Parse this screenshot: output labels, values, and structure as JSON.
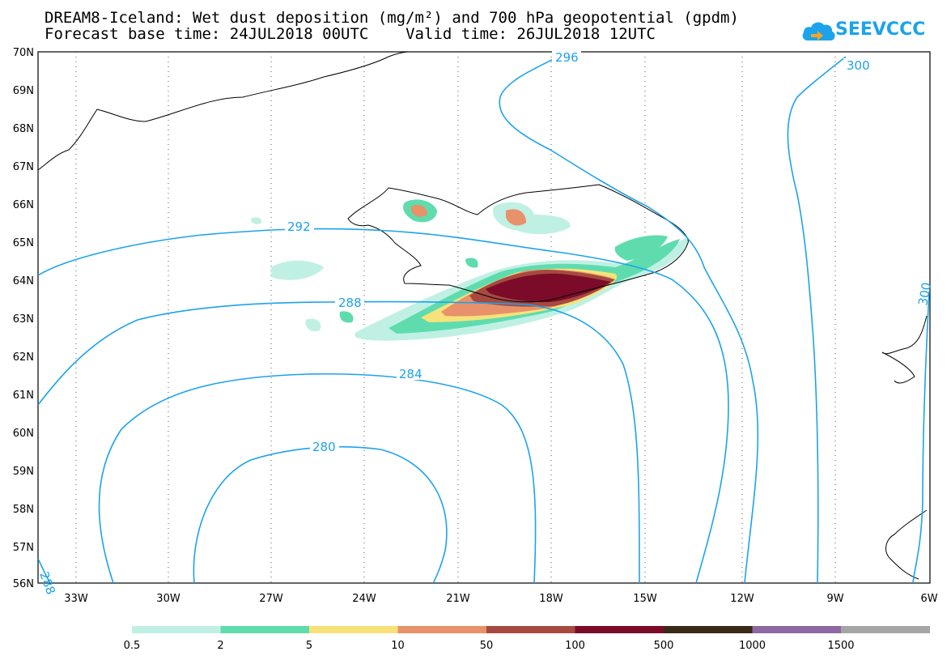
{
  "header": {
    "title_line1": "DREAM8-Iceland: Wet dust deposition (mg/m²) and 700 hPa geopotential (gpdm)",
    "title_line2": "Forecast base time: 24JUL2018 00UTC    Valid time: 26JUL2018 12UTC",
    "logo_text": "SEEVCCC"
  },
  "map": {
    "lat_labels": [
      "70N",
      "69N",
      "68N",
      "67N",
      "66N",
      "65N",
      "64N",
      "63N",
      "62N",
      "61N",
      "60N",
      "59N",
      "58N",
      "57N",
      "56N"
    ],
    "lon_labels": [
      "33W",
      "30W",
      "27W",
      "24W",
      "21W",
      "18W",
      "15W",
      "12W",
      "9W",
      "6W"
    ],
    "contour_labels": [
      "296",
      "300",
      "292",
      "288",
      "284",
      "280",
      "300",
      "288"
    ],
    "colors": {
      "contour": "#1ca3ec",
      "grid": "#555555",
      "coast": "#000000"
    }
  },
  "colorbar": {
    "labels": [
      "0.5",
      "2",
      "5",
      "10",
      "50",
      "100",
      "500",
      "1000",
      "1500"
    ],
    "colors": [
      "#c0f0e4",
      "#5fdcae",
      "#f7e27a",
      "#e9916a",
      "#a64a40",
      "#7c0b2a",
      "#3a2a16",
      "#8e68a0",
      "#a5a5a5"
    ]
  }
}
